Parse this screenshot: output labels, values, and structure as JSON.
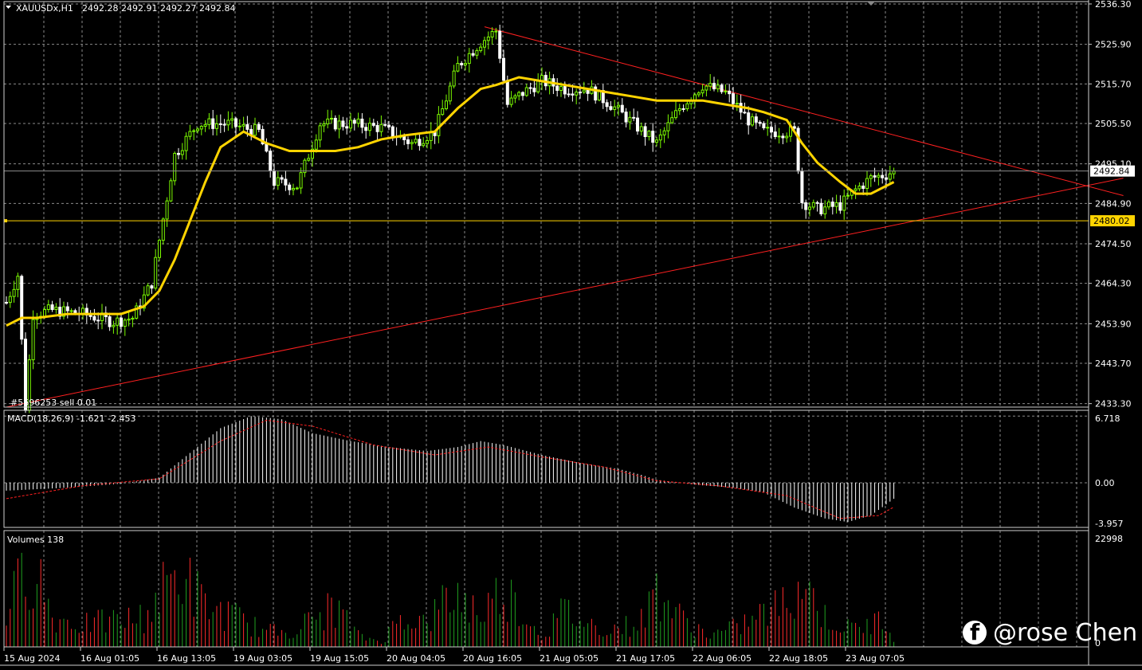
{
  "header": {
    "symbol": "XAUUSDx,H1",
    "ohlc": "2492.28 2492.91 2492.27 2492.84"
  },
  "order_label": "#5696253 sell 0.01",
  "watermark": {
    "text": "@rose Chen",
    "icon": "facebook-icon"
  },
  "colors": {
    "background": "#000000",
    "grid": "#8a8a8a",
    "bull": "#7cfc00",
    "bear": "#ffffff",
    "ma": "#ffd400",
    "trend": "#ff2020",
    "volume_up": "#1fa01f",
    "volume_down": "#ff2b2b",
    "macd_signal": "#ff2020"
  },
  "chart_data": [
    {
      "type": "candlestick",
      "title": "XAUUSDx,H1",
      "y_ticks": [
        "2536.30",
        "2525.90",
        "2515.70",
        "2505.50",
        "2495.10",
        "2484.90",
        "2474.50",
        "2464.30",
        "2453.90",
        "2443.70",
        "2433.30"
      ],
      "ylim": [
        2432,
        2536.5
      ],
      "x_ticks": [
        "15 Aug 2024",
        "16 Aug 01:05",
        "16 Aug 13:05",
        "19 Aug 03:05",
        "19 Aug 15:05",
        "20 Aug 04:05",
        "20 Aug 16:05",
        "21 Aug 05:05",
        "21 Aug 17:05",
        "22 Aug 06:05",
        "22 Aug 18:05",
        "23 Aug 07:05"
      ],
      "current_price": "2492.84",
      "level_price": "2480.02",
      "close_anchors": [
        [
          0,
          2459
        ],
        [
          3,
          2466
        ],
        [
          5,
          2432
        ],
        [
          7,
          2456
        ],
        [
          12,
          2457
        ],
        [
          20,
          2456
        ],
        [
          28,
          2454
        ],
        [
          33,
          2455
        ],
        [
          38,
          2464
        ],
        [
          44,
          2497
        ],
        [
          50,
          2505
        ],
        [
          58,
          2505
        ],
        [
          66,
          2503
        ],
        [
          70,
          2490
        ],
        [
          76,
          2489
        ],
        [
          82,
          2505
        ],
        [
          90,
          2505
        ],
        [
          98,
          2504
        ],
        [
          106,
          2500
        ],
        [
          112,
          2503
        ],
        [
          118,
          2520
        ],
        [
          124,
          2526
        ],
        [
          128,
          2529
        ],
        [
          131,
          2510
        ],
        [
          135,
          2513
        ],
        [
          140,
          2516
        ],
        [
          146,
          2514
        ],
        [
          152,
          2514
        ],
        [
          158,
          2510
        ],
        [
          164,
          2505
        ],
        [
          170,
          2500
        ],
        [
          176,
          2509
        ],
        [
          182,
          2515
        ],
        [
          188,
          2513
        ],
        [
          194,
          2506
        ],
        [
          198,
          2503
        ],
        [
          202,
          2503
        ],
        [
          206,
          2503
        ],
        [
          208,
          2485
        ],
        [
          212,
          2483
        ],
        [
          218,
          2484
        ],
        [
          222,
          2488
        ],
        [
          226,
          2491
        ],
        [
          230,
          2492
        ],
        [
          232,
          2492.84
        ]
      ],
      "ma_series_points": [
        [
          0,
          2453
        ],
        [
          4,
          2455
        ],
        [
          8,
          2455
        ],
        [
          16,
          2456
        ],
        [
          24,
          2456
        ],
        [
          30,
          2456
        ],
        [
          36,
          2458
        ],
        [
          40,
          2462
        ],
        [
          44,
          2470
        ],
        [
          48,
          2480
        ],
        [
          52,
          2490
        ],
        [
          56,
          2499
        ],
        [
          62,
          2503
        ],
        [
          68,
          2500
        ],
        [
          74,
          2498
        ],
        [
          80,
          2498
        ],
        [
          86,
          2498
        ],
        [
          92,
          2499
        ],
        [
          98,
          2501
        ],
        [
          104,
          2502
        ],
        [
          112,
          2503
        ],
        [
          118,
          2509
        ],
        [
          124,
          2514
        ],
        [
          128,
          2515
        ],
        [
          134,
          2517
        ],
        [
          140,
          2516
        ],
        [
          146,
          2515
        ],
        [
          152,
          2514
        ],
        [
          158,
          2513
        ],
        [
          164,
          2512
        ],
        [
          170,
          2511
        ],
        [
          176,
          2511
        ],
        [
          182,
          2511
        ],
        [
          188,
          2510
        ],
        [
          194,
          2509
        ],
        [
          198,
          2508
        ],
        [
          204,
          2506
        ],
        [
          208,
          2500
        ],
        [
          212,
          2495
        ],
        [
          218,
          2490
        ],
        [
          222,
          2487
        ],
        [
          226,
          2487
        ],
        [
          230,
          2489
        ],
        [
          232,
          2490
        ]
      ],
      "trendlines": [
        {
          "from": [
            125,
            2530
          ],
          "to": [
            292,
            2486.5
          ]
        },
        {
          "from": [
            0,
            2432
          ],
          "to": [
            292,
            2491
          ]
        }
      ]
    },
    {
      "type": "bar",
      "title": "MACD(18,26,9) -1.621 -2.453",
      "y_ticks": [
        "6.718",
        "0.00",
        "-3.957"
      ],
      "ylim": [
        -4.5,
        7.3
      ],
      "hist_anchors": [
        [
          0,
          -0.8
        ],
        [
          16,
          -0.5
        ],
        [
          30,
          -0.1
        ],
        [
          40,
          0.5
        ],
        [
          48,
          3.0
        ],
        [
          56,
          5.5
        ],
        [
          64,
          6.718
        ],
        [
          72,
          6.4
        ],
        [
          80,
          5.0
        ],
        [
          90,
          4.2
        ],
        [
          100,
          3.6
        ],
        [
          110,
          3.2
        ],
        [
          118,
          3.6
        ],
        [
          124,
          4.2
        ],
        [
          130,
          3.8
        ],
        [
          140,
          2.8
        ],
        [
          150,
          2.0
        ],
        [
          160,
          1.4
        ],
        [
          166,
          0.8
        ],
        [
          170,
          0.3
        ],
        [
          180,
          -0.2
        ],
        [
          190,
          -0.5
        ],
        [
          198,
          -1.0
        ],
        [
          206,
          -2.5
        ],
        [
          214,
          -3.6
        ],
        [
          220,
          -3.957
        ],
        [
          226,
          -3.3
        ],
        [
          232,
          -1.621
        ]
      ],
      "signal_anchors": [
        [
          0,
          -1.6
        ],
        [
          20,
          -0.3
        ],
        [
          40,
          0.4
        ],
        [
          56,
          4.2
        ],
        [
          68,
          6.3
        ],
        [
          80,
          5.7
        ],
        [
          96,
          3.8
        ],
        [
          112,
          2.8
        ],
        [
          126,
          3.6
        ],
        [
          140,
          2.6
        ],
        [
          156,
          1.6
        ],
        [
          170,
          0.2
        ],
        [
          186,
          -0.3
        ],
        [
          204,
          -1.3
        ],
        [
          218,
          -3.6
        ],
        [
          228,
          -3.3
        ],
        [
          232,
          -2.453
        ]
      ]
    },
    {
      "type": "bar",
      "title": "Volumes 138",
      "y_ticks": [
        "22998",
        "0"
      ],
      "ylim": [
        0,
        22998
      ],
      "volume_anchors": [
        [
          0,
          9000
        ],
        [
          5,
          21000
        ],
        [
          8,
          22000
        ],
        [
          12,
          8000
        ],
        [
          20,
          6000
        ],
        [
          28,
          7000
        ],
        [
          36,
          8000
        ],
        [
          42,
          17000
        ],
        [
          46,
          20000
        ],
        [
          52,
          11000
        ],
        [
          60,
          8000
        ],
        [
          68,
          4000
        ],
        [
          76,
          5000
        ],
        [
          86,
          11000
        ],
        [
          92,
          3000
        ],
        [
          98,
          1500
        ],
        [
          104,
          9000
        ],
        [
          110,
          6000
        ],
        [
          114,
          12000
        ],
        [
          118,
          14000
        ],
        [
          124,
          9000
        ],
        [
          130,
          16000
        ],
        [
          136,
          8000
        ],
        [
          140,
          3000
        ],
        [
          146,
          10000
        ],
        [
          152,
          6000
        ],
        [
          160,
          5000
        ],
        [
          166,
          7000
        ],
        [
          170,
          16000
        ],
        [
          176,
          8000
        ],
        [
          184,
          3000
        ],
        [
          190,
          5000
        ],
        [
          196,
          8000
        ],
        [
          204,
          12000
        ],
        [
          208,
          19000
        ],
        [
          214,
          8000
        ],
        [
          220,
          5000
        ],
        [
          226,
          6000
        ],
        [
          230,
          8000
        ],
        [
          232,
          3000
        ]
      ]
    }
  ]
}
